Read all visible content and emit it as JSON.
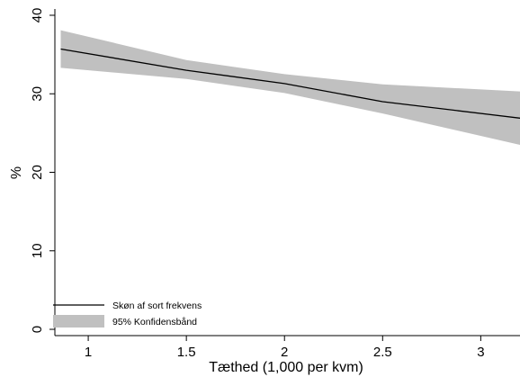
{
  "chart_data": {
    "type": "line",
    "title": "",
    "xlabel": "Tæthed (1,000 per kvm)",
    "ylabel": "%",
    "xlim": [
      0.83,
      3.2
    ],
    "ylim": [
      -0.8,
      40.8
    ],
    "x_ticks": [
      1,
      1.5,
      2,
      2.5,
      3
    ],
    "x_tick_labels": [
      "1",
      "1.5",
      "2",
      "2.5",
      "3"
    ],
    "y_ticks": [
      0,
      10,
      20,
      30,
      40
    ],
    "y_tick_labels": [
      "0",
      "10",
      "20",
      "30",
      "40"
    ],
    "grid": false,
    "legend_position": "bottom-left",
    "line_color": "#000000",
    "band_color": "#c0c0c0",
    "series": [
      {
        "name": "Skøn af sort frekvens",
        "kind": "line",
        "x": [
          0.86,
          1.5,
          2.0,
          2.5,
          3.2
        ],
        "y": [
          35.7,
          33.0,
          31.3,
          29.0,
          26.9
        ]
      },
      {
        "name": "95% Konfidensbånd",
        "kind": "band",
        "x": [
          0.86,
          1.5,
          2.0,
          2.5,
          3.2
        ],
        "lower": [
          33.3,
          31.9,
          30.1,
          27.5,
          23.5
        ],
        "upper": [
          38.1,
          34.3,
          32.5,
          31.2,
          30.3
        ]
      }
    ]
  }
}
